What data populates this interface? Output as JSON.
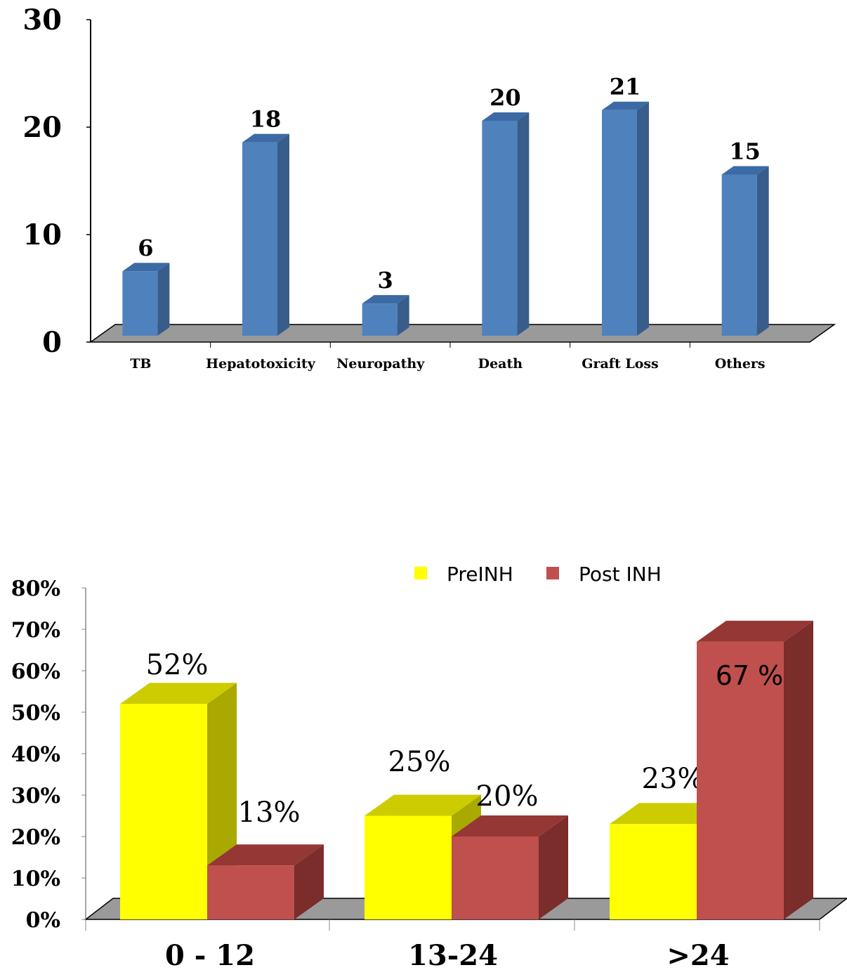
{
  "chart_data": [
    {
      "type": "bar",
      "categories": [
        "TB",
        "Hepatotoxicity",
        "Neuropathy",
        "Death",
        "Graft Loss",
        "Others"
      ],
      "values": [
        6,
        18,
        3,
        20,
        21,
        15
      ],
      "data_labels": [
        "6",
        "18",
        "3",
        "20",
        "21",
        "15"
      ],
      "yticks": [
        "0",
        "10",
        "20",
        "30"
      ],
      "ylim": [
        0,
        30
      ],
      "title": "",
      "xlabel": "",
      "ylabel": "",
      "grid": false,
      "colors": {
        "front": "#4f81bd",
        "top": "#3c6aa4",
        "side": "#385d8a",
        "floor": "#9a9a9a"
      }
    },
    {
      "type": "bar",
      "categories": [
        "0 - 12",
        "13-24",
        ">24"
      ],
      "series": [
        {
          "name": "PreINH",
          "values": [
            52,
            25,
            23
          ],
          "data_labels": [
            "52%",
            "25%",
            "23%"
          ]
        },
        {
          "name": "Post INH",
          "values": [
            13,
            20,
            67
          ],
          "data_labels": [
            "13%",
            "20%",
            "67 %"
          ]
        }
      ],
      "yticks": [
        "0%",
        "10%",
        "20%",
        "30%",
        "40%",
        "50%",
        "60%",
        "70%",
        "80%"
      ],
      "ylim": [
        0,
        80
      ],
      "title": "",
      "xlabel": "",
      "ylabel": "",
      "grid": false,
      "legend": "top-right",
      "colors": {
        "PreINH": {
          "front": "#ffff00",
          "top": "#cccc00",
          "side": "#a9a900"
        },
        "Post INH": {
          "front": "#c0504d",
          "top": "#953735",
          "side": "#7a2d2b"
        },
        "floor": "#9a9a9a"
      }
    }
  ]
}
